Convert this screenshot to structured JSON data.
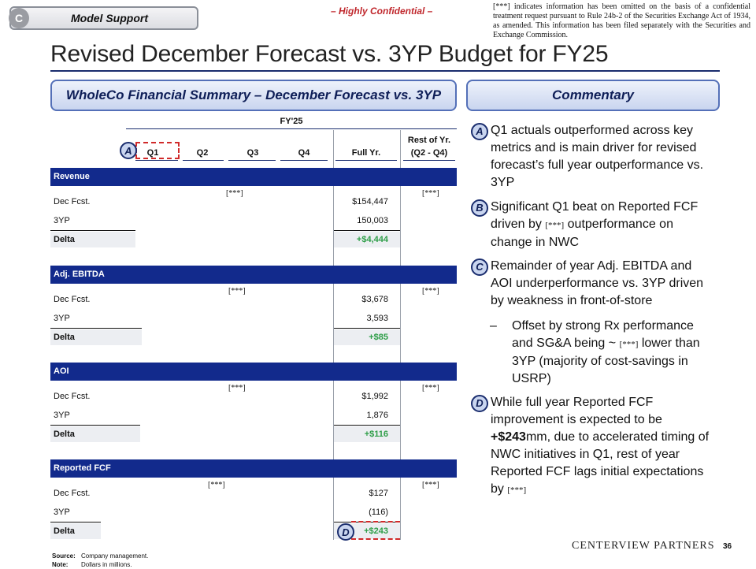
{
  "header": {
    "section_letter": "C",
    "section_label": "Model Support",
    "confidential": "– Highly Confidential –",
    "disclaimer": "[***] indicates information has been omitted on the basis of a confidential treatment request pursuant to Rule 24b-2 of the Securities Exchange Act of 1934, as amended. This information has been filed separately with the Securities and Exchange Commission.",
    "title": "Revised December Forecast vs. 3YP Budget for FY25"
  },
  "summary": {
    "heading": "WholeCo Financial Summary – December Forecast vs. 3YP",
    "period": "FY'25",
    "columns": [
      "Q1",
      "Q2",
      "Q3",
      "Q4",
      "Full Yr.",
      "Rest of Yr.",
      "(Q2 - Q4)"
    ],
    "sections": [
      {
        "name": "Revenue",
        "dec_label": "Dec Fcst.",
        "dec_q": "[***]",
        "dec_full": "$154,447",
        "dec_rest": "[***]",
        "plan_label": "3YP",
        "plan_full": "150,003",
        "delta_label": "Delta",
        "delta_full": "+$4,444"
      },
      {
        "name": "Adj. EBITDA",
        "dec_label": "Dec Fcst.",
        "dec_q": "[***]",
        "dec_full": "$3,678",
        "dec_rest": "[***]",
        "plan_label": "3YP",
        "plan_full": "3,593",
        "delta_label": "Delta",
        "delta_full": "+$85"
      },
      {
        "name": "AOI",
        "dec_label": "Dec Fcst.",
        "dec_q": "[***]",
        "dec_full": "$1,992",
        "dec_rest": "[***]",
        "plan_label": "3YP",
        "plan_full": "1,876",
        "delta_label": "Delta",
        "delta_full": "+$116"
      },
      {
        "name": "Reported FCF",
        "dec_label": "Dec Fcst.",
        "dec_q": "[***]",
        "dec_full": "$127",
        "dec_rest": "[***]",
        "plan_label": "3YP",
        "plan_full": "(116)",
        "delta_label": "Delta",
        "delta_full": "+$243"
      }
    ],
    "badges": {
      "a": "A",
      "d": "D"
    }
  },
  "commentary": {
    "heading": "Commentary",
    "items": [
      {
        "badge": "A",
        "text": "Q1 actuals outperformed across key metrics and is main driver for revised forecast’s full year outperformance vs. 3YP"
      },
      {
        "badge": "B",
        "text_pre": "Significant Q1 beat on Reported FCF driven by",
        "stars": "[***]",
        "text_post": "outperformance on change in NWC"
      },
      {
        "badge": "C",
        "text": "Remainder of year Adj. EBITDA and AOI underperformance vs. 3YP driven by weakness in front-of-store"
      },
      {
        "badge": "D",
        "text_pre": "While full year Reported FCF improvement is expected to be",
        "bold": "+$243",
        "text_post": "mm, due to accelerated timing of NWC initiatives in Q1, rest of year Reported FCF lags initial expectations by",
        "stars": "[***]"
      }
    ],
    "sub": {
      "dash": "–",
      "text_pre": "Offset by strong Rx performance and SG&A being ~",
      "stars": "[***]",
      "text_post": "lower than 3YP (majority of cost-savings in USRP)"
    }
  },
  "footer": {
    "source_key": "Source:",
    "source": "Company management.",
    "note_key": "Note:",
    "note": "Dollars in millions.",
    "logo": "CENTERVIEW PARTNERS",
    "page": "36"
  }
}
